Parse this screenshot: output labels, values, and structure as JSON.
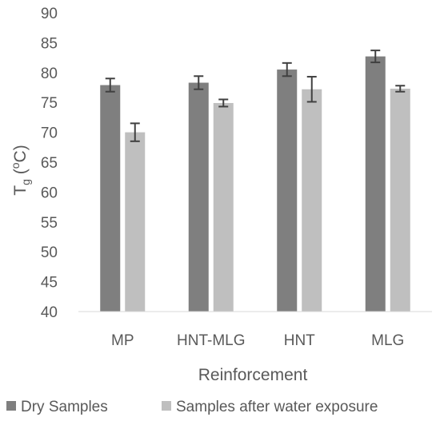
{
  "chart_data": {
    "type": "bar",
    "title": "",
    "xlabel": "Reinforcement",
    "ylabel": {
      "base": "T",
      "sub": "g",
      "rest": " (°C)",
      "sup": "o",
      "unit": "C"
    },
    "ylim": [
      40,
      90
    ],
    "yticks": [
      40,
      45,
      50,
      55,
      60,
      65,
      70,
      75,
      80,
      85,
      90
    ],
    "grid": false,
    "legend_position": "bottom",
    "categories": [
      "MP",
      "HNT-MLG",
      "HNT",
      "MLG"
    ],
    "series": [
      {
        "name": "Dry Samples",
        "color": "#7f7f7f",
        "values": [
          77.9,
          78.3,
          80.5,
          82.7
        ],
        "errors": [
          1.1,
          1.1,
          1.1,
          1.0
        ]
      },
      {
        "name": "Samples after water exposure",
        "color": "#bfbfbf",
        "values": [
          70.0,
          74.9,
          77.2,
          77.3
        ],
        "errors": [
          1.5,
          0.6,
          2.1,
          0.5
        ]
      }
    ]
  }
}
